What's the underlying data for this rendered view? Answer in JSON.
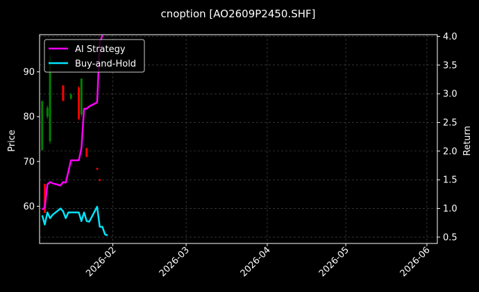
{
  "chart_data": {
    "type": "candlestick+line",
    "title": "cnoption [AO2609P2450.SHF]",
    "ylabel": "Price",
    "y2label": "Return",
    "ylim": [
      51.7,
      98.3
    ],
    "y2lim": [
      0.39,
      4.03
    ],
    "xlim": [
      "2026-01-04",
      "2026-06-05"
    ],
    "yticks": [
      60,
      70,
      80,
      90
    ],
    "y2ticks": [
      0.5,
      1.0,
      1.5,
      2.0,
      2.5,
      3.0,
      3.5,
      4.0
    ],
    "y2tick_labels": [
      "0.5",
      "1.0",
      "1.5",
      "2.0",
      "2.5",
      "3.0",
      "3.5",
      "4.0"
    ],
    "xticks": [
      "2026-02-01",
      "2026-03-01",
      "2026-04-01",
      "2026-05-01",
      "2026-06-01"
    ],
    "xtick_labels": [
      "2026-02",
      "2026-03",
      "2026-04",
      "2026-05",
      "2026-06"
    ],
    "grid": true,
    "legend": "top-left",
    "colors": {
      "background": "#000000",
      "text": "#ffffff",
      "grid": "#555555",
      "up": "#008000",
      "down": "#ff0000",
      "strategy": "#ff00ff",
      "buyhold": "#00e5ff"
    },
    "candles": [
      {
        "date": "2026-01-05",
        "open": 83.5,
        "close": 72.5,
        "high": 83.5,
        "low": 72.5,
        "dir": "up"
      },
      {
        "date": "2026-01-06",
        "open": 65.0,
        "close": 58.5,
        "high": 65.0,
        "low": 58.5,
        "dir": "down"
      },
      {
        "date": "2026-01-07",
        "open": 82.0,
        "close": 80.0,
        "high": 82.5,
        "low": 79.5,
        "dir": "up"
      },
      {
        "date": "2026-01-08",
        "open": 93.5,
        "close": 74.5,
        "high": 94.0,
        "low": 74.0,
        "dir": "up"
      },
      {
        "date": "2026-01-13",
        "open": 87.0,
        "close": 83.5,
        "high": 87.0,
        "low": 83.5,
        "dir": "down"
      },
      {
        "date": "2026-01-16",
        "open": 85.0,
        "close": 84.0,
        "high": 85.2,
        "low": 83.8,
        "dir": "up"
      },
      {
        "date": "2026-01-19",
        "open": 86.5,
        "close": 79.5,
        "high": 86.8,
        "low": 79.2,
        "dir": "down"
      },
      {
        "date": "2026-01-20",
        "open": 88.5,
        "close": 80.5,
        "high": 88.5,
        "low": 80.0,
        "dir": "up"
      },
      {
        "date": "2026-01-22",
        "open": 73.0,
        "close": 71.0,
        "high": 73.0,
        "low": 71.0,
        "dir": "down"
      },
      {
        "date": "2026-01-26",
        "open": 68.5,
        "close": 68.2,
        "high": 68.6,
        "low": 68.1,
        "dir": "down"
      },
      {
        "date": "2026-01-27",
        "open": 66.0,
        "close": 65.7,
        "high": 66.1,
        "low": 65.6,
        "dir": "down"
      }
    ],
    "series": [
      {
        "name": "AI Strategy",
        "color": "#ff00ff",
        "axis": "right",
        "x": [
          "2026-01-05",
          "2026-01-06",
          "2026-01-07",
          "2026-01-08",
          "2026-01-09",
          "2026-01-12",
          "2026-01-13",
          "2026-01-14",
          "2026-01-15",
          "2026-01-16",
          "2026-01-19",
          "2026-01-20",
          "2026-01-21",
          "2026-01-22",
          "2026-01-23",
          "2026-01-26",
          "2026-01-27",
          "2026-01-28"
        ],
        "values": [
          0.98,
          1.02,
          1.42,
          1.46,
          1.44,
          1.4,
          1.46,
          1.45,
          1.64,
          1.84,
          1.84,
          2.05,
          2.74,
          2.74,
          2.78,
          2.85,
          3.88,
          4.02
        ]
      },
      {
        "name": "Buy-and-Hold",
        "color": "#00e5ff",
        "axis": "right",
        "x": [
          "2026-01-05",
          "2026-01-06",
          "2026-01-07",
          "2026-01-08",
          "2026-01-09",
          "2026-01-12",
          "2026-01-13",
          "2026-01-14",
          "2026-01-15",
          "2026-01-16",
          "2026-01-19",
          "2026-01-20",
          "2026-01-21",
          "2026-01-22",
          "2026-01-23",
          "2026-01-26",
          "2026-01-27",
          "2026-01-28",
          "2026-01-29",
          "2026-01-30"
        ],
        "values": [
          0.88,
          0.72,
          0.93,
          0.83,
          0.89,
          1.0,
          0.95,
          0.83,
          0.93,
          0.93,
          0.93,
          0.78,
          0.93,
          0.78,
          0.77,
          1.03,
          0.68,
          0.68,
          0.55,
          0.53
        ]
      }
    ]
  }
}
